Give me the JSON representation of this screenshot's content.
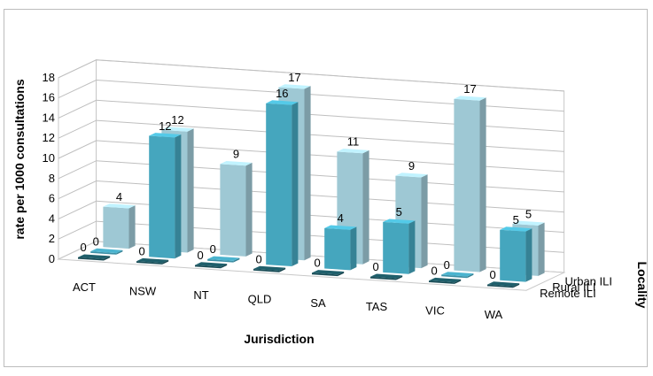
{
  "chart_data": {
    "type": "bar",
    "xlabel": "Jurisdiction",
    "ylabel": "rate per 1000 consultations",
    "zlabel": "Locality",
    "ylim": [
      0,
      18
    ],
    "yticks": [
      "0",
      "2",
      "4",
      "6",
      "8",
      "10",
      "12",
      "14",
      "16",
      "18"
    ],
    "categories": [
      "ACT",
      "NSW",
      "NT",
      "QLD",
      "SA",
      "TAS",
      "VIC",
      "WA"
    ],
    "series": [
      {
        "name": "Remote ILI",
        "values": [
          0,
          0,
          0,
          0,
          0,
          0,
          0,
          0
        ],
        "color": "#1f5f6b"
      },
      {
        "name": "Rural ILI",
        "values": [
          0,
          12,
          0,
          16,
          4,
          5,
          0,
          5
        ],
        "color": "#4bb4cf"
      },
      {
        "name": "Urban ILI",
        "values": [
          4,
          12,
          9,
          17,
          11,
          9,
          17,
          5
        ],
        "color": "#acd9e6"
      }
    ],
    "grid": true,
    "chart_style": "3d-column"
  }
}
